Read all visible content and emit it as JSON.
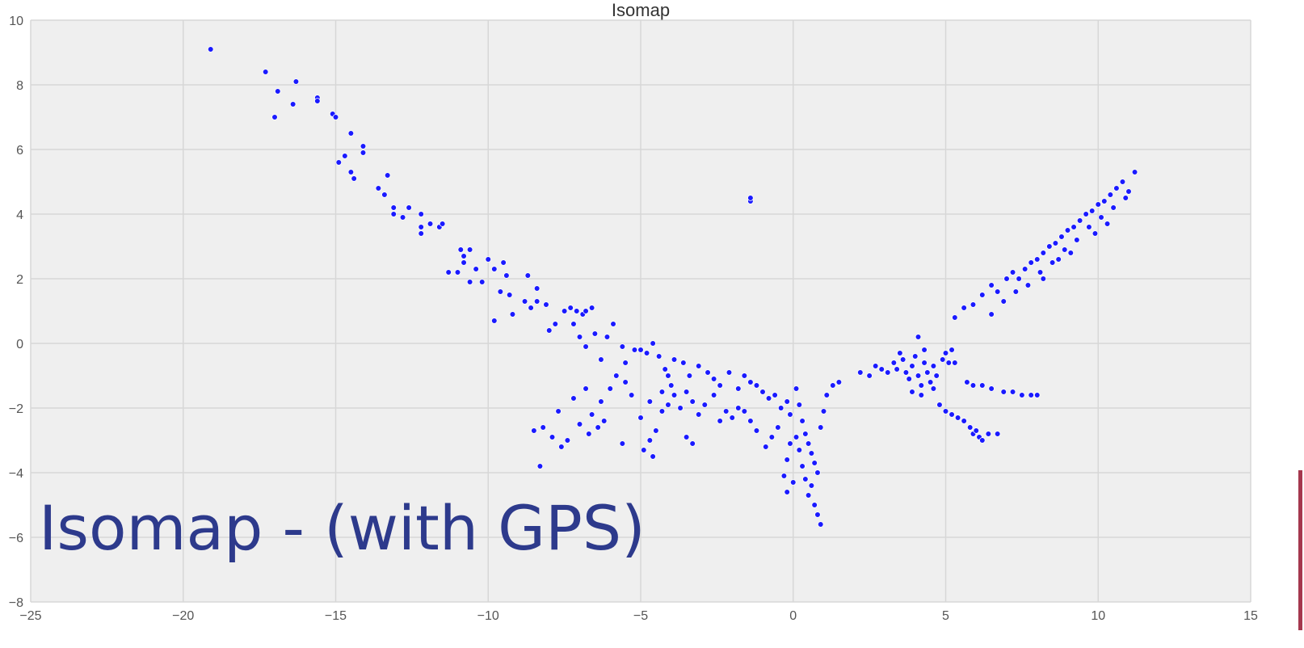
{
  "slide": {
    "overlay_title": "Isomap - (with GPS)"
  },
  "colors": {
    "plot_background": "#efefef",
    "grid": "#d7d7d7",
    "marker": "#1a1aff",
    "marker_edge": "#ffffff",
    "tick_text": "#555555",
    "overlay_title": "#2d3a8c",
    "accent_bar": "#a5384e"
  },
  "chart_data": {
    "type": "scatter",
    "title": "Isomap",
    "xlabel": "",
    "ylabel": "",
    "xlim": [
      -25,
      15
    ],
    "ylim": [
      -8,
      10
    ],
    "xticks": [
      -25,
      -20,
      -15,
      -10,
      -5,
      0,
      5,
      10,
      15
    ],
    "yticks": [
      -8,
      -6,
      -4,
      -2,
      0,
      2,
      4,
      6,
      8,
      10
    ],
    "xtick_labels": [
      "−25",
      "−20",
      "−15",
      "−10",
      "−5",
      "0",
      "5",
      "10",
      "15"
    ],
    "ytick_labels": [
      "−8",
      "−6",
      "−4",
      "−2",
      "0",
      "2",
      "4",
      "6",
      "8",
      "10"
    ],
    "grid": true,
    "series": [
      {
        "points": [
          [
            -19.1,
            9.1
          ],
          [
            -17.3,
            8.4
          ],
          [
            -16.9,
            7.8
          ],
          [
            -16.3,
            8.1
          ],
          [
            -16.4,
            7.4
          ],
          [
            -17.0,
            7.0
          ],
          [
            -15.6,
            7.6
          ],
          [
            -15.6,
            7.5
          ],
          [
            -15.1,
            7.1
          ],
          [
            -15.0,
            7.0
          ],
          [
            -14.7,
            5.8
          ],
          [
            -14.9,
            5.6
          ],
          [
            -14.5,
            6.5
          ],
          [
            -14.5,
            5.3
          ],
          [
            -14.4,
            5.1
          ],
          [
            -14.1,
            6.1
          ],
          [
            -14.1,
            5.9
          ],
          [
            -13.3,
            5.2
          ],
          [
            -13.6,
            4.8
          ],
          [
            -13.4,
            4.6
          ],
          [
            -13.1,
            4.2
          ],
          [
            -13.1,
            4.0
          ],
          [
            -12.8,
            3.9
          ],
          [
            -12.6,
            4.2
          ],
          [
            -12.2,
            4.0
          ],
          [
            -12.2,
            3.6
          ],
          [
            -12.2,
            3.4
          ],
          [
            -11.9,
            3.7
          ],
          [
            -11.6,
            3.6
          ],
          [
            -11.5,
            3.7
          ],
          [
            -11.3,
            2.2
          ],
          [
            -11.0,
            2.2
          ],
          [
            -10.9,
            2.9
          ],
          [
            -10.8,
            2.7
          ],
          [
            -10.6,
            2.9
          ],
          [
            -10.8,
            2.5
          ],
          [
            -10.4,
            2.3
          ],
          [
            -10.6,
            1.9
          ],
          [
            -10.2,
            1.9
          ],
          [
            -10.0,
            2.6
          ],
          [
            -9.8,
            2.3
          ],
          [
            -9.5,
            2.5
          ],
          [
            -9.4,
            2.1
          ],
          [
            -9.6,
            1.6
          ],
          [
            -9.3,
            1.5
          ],
          [
            -9.8,
            0.7
          ],
          [
            -9.2,
            0.9
          ],
          [
            -8.7,
            2.1
          ],
          [
            -8.8,
            1.3
          ],
          [
            -8.6,
            1.1
          ],
          [
            -8.4,
            1.3
          ],
          [
            -8.4,
            1.7
          ],
          [
            -8.1,
            1.2
          ],
          [
            -8.0,
            0.4
          ],
          [
            -7.8,
            0.6
          ],
          [
            -7.5,
            1.0
          ],
          [
            -7.3,
            1.1
          ],
          [
            -7.1,
            1.0
          ],
          [
            -6.9,
            0.9
          ],
          [
            -6.8,
            1.0
          ],
          [
            -6.6,
            1.1
          ],
          [
            -7.2,
            0.6
          ],
          [
            -7.0,
            0.2
          ],
          [
            -6.8,
            -0.1
          ],
          [
            -6.5,
            0.3
          ],
          [
            -6.3,
            -0.5
          ],
          [
            -6.1,
            0.2
          ],
          [
            -5.9,
            0.6
          ],
          [
            -5.6,
            -0.1
          ],
          [
            -5.5,
            -0.6
          ],
          [
            -5.2,
            -0.2
          ],
          [
            -5.0,
            -0.2
          ],
          [
            -4.8,
            -0.3
          ],
          [
            -4.6,
            0.0
          ],
          [
            -4.4,
            -0.4
          ],
          [
            -4.2,
            -0.8
          ],
          [
            -4.1,
            -1.0
          ],
          [
            -3.9,
            -0.5
          ],
          [
            -3.6,
            -0.6
          ],
          [
            -3.4,
            -1.0
          ],
          [
            -3.1,
            -0.7
          ],
          [
            -2.8,
            -0.9
          ],
          [
            -2.6,
            -1.1
          ],
          [
            -2.4,
            -1.3
          ],
          [
            -2.1,
            -0.9
          ],
          [
            -1.8,
            -1.4
          ],
          [
            -1.6,
            -1.0
          ],
          [
            -1.4,
            -1.2
          ],
          [
            -1.2,
            -1.3
          ],
          [
            -1.0,
            -1.5
          ],
          [
            -0.8,
            -1.7
          ],
          [
            -0.6,
            -1.6
          ],
          [
            -0.4,
            -2.0
          ],
          [
            -0.2,
            -1.8
          ],
          [
            -0.1,
            -2.2
          ],
          [
            0.1,
            -1.4
          ],
          [
            0.2,
            -1.9
          ],
          [
            0.3,
            -2.4
          ],
          [
            0.4,
            -2.8
          ],
          [
            0.5,
            -3.1
          ],
          [
            0.6,
            -3.4
          ],
          [
            0.7,
            -3.7
          ],
          [
            0.8,
            -4.0
          ],
          [
            0.6,
            -4.4
          ],
          [
            0.5,
            -4.7
          ],
          [
            0.7,
            -5.0
          ],
          [
            0.8,
            -5.3
          ],
          [
            0.9,
            -5.6
          ],
          [
            0.3,
            -3.8
          ],
          [
            0.2,
            -3.3
          ],
          [
            0.1,
            -2.9
          ],
          [
            -0.1,
            -3.1
          ],
          [
            -0.2,
            -3.6
          ],
          [
            -0.3,
            -4.1
          ],
          [
            -0.2,
            -4.6
          ],
          [
            0.0,
            -4.3
          ],
          [
            0.4,
            -4.2
          ],
          [
            0.9,
            -2.6
          ],
          [
            1.0,
            -2.1
          ],
          [
            1.1,
            -1.6
          ],
          [
            1.3,
            -1.3
          ],
          [
            1.5,
            -1.2
          ],
          [
            -0.5,
            -2.6
          ],
          [
            -0.7,
            -2.9
          ],
          [
            -0.9,
            -3.2
          ],
          [
            -1.2,
            -2.7
          ],
          [
            -1.4,
            -2.4
          ],
          [
            -1.6,
            -2.1
          ],
          [
            -1.8,
            -2.0
          ],
          [
            -2.0,
            -2.3
          ],
          [
            -2.2,
            -2.1
          ],
          [
            -2.4,
            -2.4
          ],
          [
            -2.6,
            -1.6
          ],
          [
            -2.9,
            -1.9
          ],
          [
            -3.1,
            -2.2
          ],
          [
            -3.3,
            -1.8
          ],
          [
            -3.5,
            -1.5
          ],
          [
            -3.7,
            -2.0
          ],
          [
            -3.9,
            -1.6
          ],
          [
            -4.1,
            -1.9
          ],
          [
            -4.3,
            -2.1
          ],
          [
            -4.5,
            -2.7
          ],
          [
            -4.7,
            -3.0
          ],
          [
            -4.9,
            -3.3
          ],
          [
            -4.6,
            -3.5
          ],
          [
            -3.3,
            -3.1
          ],
          [
            -3.5,
            -2.9
          ],
          [
            -4.0,
            -1.3
          ],
          [
            -4.3,
            -1.5
          ],
          [
            -4.7,
            -1.8
          ],
          [
            -5.0,
            -2.3
          ],
          [
            -5.3,
            -1.6
          ],
          [
            -5.5,
            -1.2
          ],
          [
            -5.8,
            -1.0
          ],
          [
            -6.0,
            -1.4
          ],
          [
            -6.3,
            -1.8
          ],
          [
            -6.6,
            -2.2
          ],
          [
            -6.4,
            -2.6
          ],
          [
            -6.7,
            -2.8
          ],
          [
            -7.0,
            -2.5
          ],
          [
            -7.4,
            -3.0
          ],
          [
            -7.6,
            -3.2
          ],
          [
            -7.9,
            -2.9
          ],
          [
            -8.2,
            -2.6
          ],
          [
            -8.5,
            -2.7
          ],
          [
            -8.3,
            -3.8
          ],
          [
            -7.7,
            -2.1
          ],
          [
            -7.2,
            -1.7
          ],
          [
            -5.6,
            -3.1
          ],
          [
            -6.2,
            -2.4
          ],
          [
            -6.8,
            -1.4
          ],
          [
            -1.4,
            4.4
          ],
          [
            -1.4,
            4.5
          ],
          [
            2.2,
            -0.9
          ],
          [
            2.5,
            -1.0
          ],
          [
            2.7,
            -0.7
          ],
          [
            2.9,
            -0.8
          ],
          [
            3.1,
            -0.9
          ],
          [
            3.3,
            -0.6
          ],
          [
            3.4,
            -0.8
          ],
          [
            3.6,
            -0.5
          ],
          [
            3.7,
            -0.9
          ],
          [
            3.8,
            -1.1
          ],
          [
            3.9,
            -0.7
          ],
          [
            4.0,
            -0.4
          ],
          [
            4.1,
            -1.0
          ],
          [
            4.2,
            -1.3
          ],
          [
            4.3,
            -0.6
          ],
          [
            4.4,
            -0.9
          ],
          [
            4.5,
            -1.2
          ],
          [
            4.6,
            -0.7
          ],
          [
            4.7,
            -1.0
          ],
          [
            4.9,
            -0.5
          ],
          [
            5.0,
            -0.3
          ],
          [
            5.1,
            -0.6
          ],
          [
            5.2,
            -0.2
          ],
          [
            5.3,
            -0.6
          ],
          [
            4.3,
            -0.2
          ],
          [
            4.1,
            0.2
          ],
          [
            3.5,
            -0.3
          ],
          [
            3.9,
            -1.5
          ],
          [
            4.2,
            -1.6
          ],
          [
            4.6,
            -1.4
          ],
          [
            4.8,
            -1.9
          ],
          [
            5.0,
            -2.1
          ],
          [
            5.2,
            -2.2
          ],
          [
            5.4,
            -2.3
          ],
          [
            5.6,
            -2.4
          ],
          [
            5.8,
            -2.6
          ],
          [
            5.9,
            -2.8
          ],
          [
            6.1,
            -2.9
          ],
          [
            6.2,
            -3.0
          ],
          [
            6.4,
            -2.8
          ],
          [
            6.7,
            -2.8
          ],
          [
            6.0,
            -2.7
          ],
          [
            5.7,
            -1.2
          ],
          [
            5.9,
            -1.3
          ],
          [
            6.2,
            -1.3
          ],
          [
            6.5,
            -1.4
          ],
          [
            6.9,
            -1.5
          ],
          [
            7.2,
            -1.5
          ],
          [
            7.5,
            -1.6
          ],
          [
            7.8,
            -1.6
          ],
          [
            8.0,
            -1.6
          ],
          [
            5.3,
            0.8
          ],
          [
            5.6,
            1.1
          ],
          [
            5.9,
            1.2
          ],
          [
            6.2,
            1.5
          ],
          [
            6.5,
            1.8
          ],
          [
            6.7,
            1.6
          ],
          [
            7.0,
            2.0
          ],
          [
            7.2,
            2.2
          ],
          [
            7.4,
            2.0
          ],
          [
            7.6,
            2.3
          ],
          [
            7.8,
            2.5
          ],
          [
            8.0,
            2.6
          ],
          [
            8.2,
            2.8
          ],
          [
            8.4,
            3.0
          ],
          [
            8.6,
            3.1
          ],
          [
            8.8,
            3.3
          ],
          [
            9.0,
            3.5
          ],
          [
            9.2,
            3.6
          ],
          [
            9.4,
            3.8
          ],
          [
            9.6,
            4.0
          ],
          [
            9.8,
            4.1
          ],
          [
            10.0,
            4.3
          ],
          [
            10.2,
            4.4
          ],
          [
            10.4,
            4.6
          ],
          [
            10.6,
            4.8
          ],
          [
            10.8,
            5.0
          ],
          [
            11.0,
            4.7
          ],
          [
            11.2,
            5.3
          ],
          [
            10.9,
            4.5
          ],
          [
            10.5,
            4.2
          ],
          [
            10.1,
            3.9
          ],
          [
            9.7,
            3.6
          ],
          [
            9.3,
            3.2
          ],
          [
            8.9,
            2.9
          ],
          [
            8.5,
            2.5
          ],
          [
            8.1,
            2.2
          ],
          [
            7.7,
            1.8
          ],
          [
            7.3,
            1.6
          ],
          [
            6.9,
            1.3
          ],
          [
            6.5,
            0.9
          ],
          [
            8.2,
            2.0
          ],
          [
            9.1,
            2.8
          ],
          [
            10.3,
            3.7
          ],
          [
            9.9,
            3.4
          ],
          [
            8.7,
            2.6
          ]
        ]
      }
    ]
  }
}
